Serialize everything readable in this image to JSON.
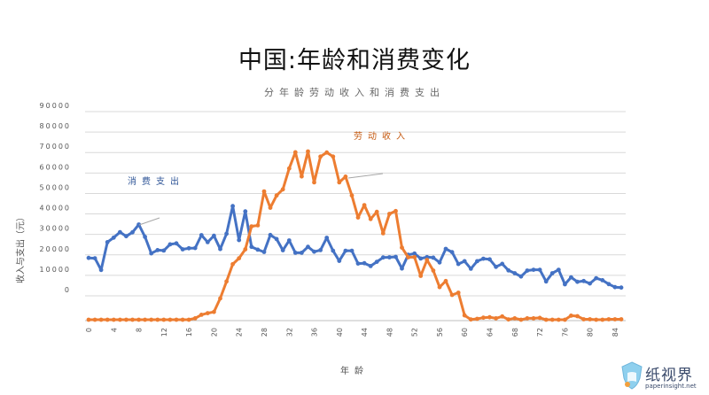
{
  "title": "中国:年龄和消费变化",
  "chart_data": {
    "type": "line",
    "title": "分年龄劳动收入和消费支出",
    "xlabel": "年龄",
    "ylabel": "收入与支出（元）",
    "x": [
      0,
      1,
      2,
      3,
      4,
      5,
      6,
      7,
      8,
      9,
      10,
      11,
      12,
      13,
      14,
      15,
      16,
      17,
      18,
      19,
      20,
      21,
      22,
      23,
      24,
      25,
      26,
      27,
      28,
      29,
      30,
      31,
      32,
      33,
      34,
      35,
      36,
      37,
      38,
      39,
      40,
      41,
      42,
      43,
      44,
      45,
      46,
      47,
      48,
      49,
      50,
      51,
      52,
      53,
      54,
      55,
      56,
      57,
      58,
      59,
      60,
      61,
      62,
      63,
      64,
      65,
      66,
      67,
      68,
      69,
      70,
      71,
      72,
      73,
      74,
      75,
      76,
      77,
      78,
      79,
      80,
      81,
      82,
      83,
      84,
      85
    ],
    "xticks": [
      0,
      4,
      8,
      12,
      16,
      20,
      24,
      28,
      32,
      36,
      40,
      44,
      48,
      52,
      56,
      60,
      64,
      68,
      72,
      76,
      80,
      84
    ],
    "yticks": [
      "90000",
      "80000",
      "70000",
      "60000",
      "50000",
      "40000",
      "30000",
      "20000",
      "10000",
      "0"
    ],
    "ylim": [
      -15000,
      90000
    ],
    "grid": true,
    "series": [
      {
        "name": "消费支出",
        "color": "#4472c4",
        "values": [
          15500,
          15300,
          9600,
          23200,
          25400,
          28100,
          26100,
          28000,
          31800,
          25800,
          17700,
          19300,
          19100,
          22100,
          22600,
          19700,
          20200,
          20300,
          26600,
          23200,
          26300,
          19800,
          27300,
          40800,
          24200,
          38200,
          20900,
          19500,
          18400,
          26700,
          24700,
          19200,
          24000,
          18000,
          18000,
          20900,
          18500,
          19300,
          25300,
          19000,
          14000,
          19000,
          19000,
          12700,
          12900,
          11500,
          13600,
          15700,
          15800,
          16000,
          10300,
          17000,
          17600,
          15200,
          15900,
          15600,
          13300,
          19900,
          18300,
          12500,
          13900,
          10200,
          13900,
          15100,
          14800,
          11100,
          12600,
          9400,
          8000,
          6400,
          9300,
          9700,
          9700,
          4000,
          8000,
          9700,
          2600,
          6000,
          3800,
          4200,
          3000,
          5600,
          4600,
          2700,
          1200,
          1000
        ]
      },
      {
        "name": "劳动收入",
        "color": "#ed7d31",
        "values": [
          -14700,
          -14700,
          -14700,
          -14700,
          -14700,
          -14700,
          -14700,
          -14700,
          -14700,
          -14700,
          -14700,
          -14700,
          -14700,
          -14700,
          -14700,
          -14700,
          -14700,
          -14000,
          -12300,
          -11500,
          -10900,
          -4300,
          4000,
          12400,
          15300,
          19700,
          30900,
          31400,
          48000,
          40000,
          46000,
          49000,
          59200,
          67100,
          55300,
          67500,
          52400,
          65000,
          67000,
          65000,
          52400,
          55200,
          46000,
          35200,
          41300,
          34500,
          38000,
          27500,
          37000,
          38400,
          20500,
          15800,
          15900,
          6700,
          14500,
          9300,
          1200,
          4200,
          -2600,
          -1500,
          -12600,
          -14600,
          -14300,
          -13700,
          -13500,
          -14000,
          -13100,
          -14600,
          -14000,
          -14700,
          -14000,
          -14000,
          -13800,
          -14700,
          -14700,
          -14700,
          -14700,
          -12700,
          -13000,
          -14500,
          -14500,
          -14700,
          -14700,
          -14500,
          -14500,
          -14500
        ]
      }
    ],
    "annotations": [
      {
        "text": "劳动收入",
        "color": "#c55a11"
      },
      {
        "text": "消费支出",
        "color": "#2f5597"
      }
    ]
  },
  "logo": {
    "name": "纸视界",
    "url_text": "paperinsight.net"
  }
}
